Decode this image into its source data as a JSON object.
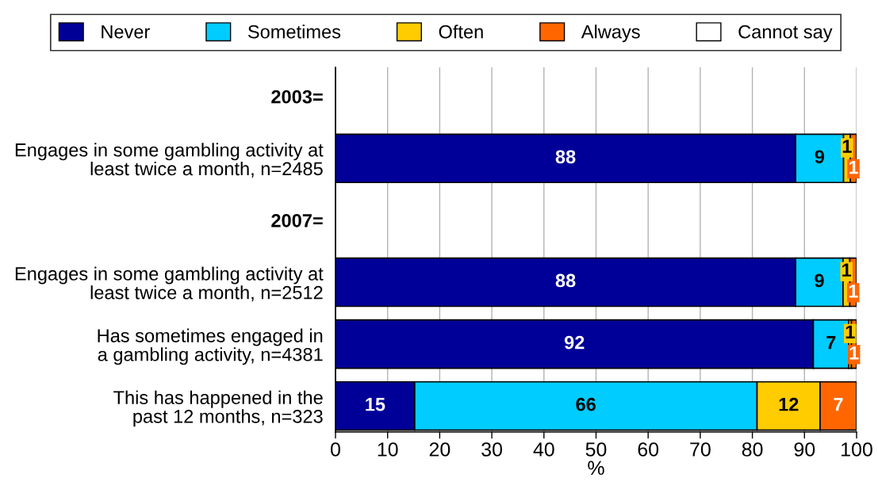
{
  "chart_data": {
    "type": "bar",
    "orientation": "horizontal",
    "stacked": true,
    "categories": [
      "2003=",
      "Engages in some gambling activity at\nleast twice a month, n=2485",
      "2007=",
      "Engages in some gambling activity at\nleast twice a month, n=2512",
      "Has sometimes engaged in\na gambling activity, n=4381",
      "This has happened in the\npast 12 months, n=323"
    ],
    "series": [
      {
        "name": "Never",
        "color": "#000099",
        "values": [
          null,
          88.3,
          null,
          88.3,
          91.7,
          15.2
        ],
        "value_labels": [
          null,
          "88",
          null,
          "88",
          "92",
          "15"
        ]
      },
      {
        "name": "Sometimes",
        "color": "#00ccff",
        "values": [
          null,
          9.2,
          null,
          9.1,
          6.8,
          65.7
        ],
        "value_labels": [
          null,
          "9",
          null,
          "9",
          "7",
          "66"
        ]
      },
      {
        "name": "Often",
        "color": "#ffcc00",
        "values": [
          null,
          1.3,
          null,
          1.3,
          0.5,
          12.1
        ],
        "value_labels": [
          null,
          "1",
          null,
          "1",
          "1",
          "12"
        ]
      },
      {
        "name": "Always",
        "color": "#ff6600",
        "values": [
          null,
          1.2,
          null,
          1.3,
          1.0,
          7.0
        ],
        "value_labels": [
          null,
          "1",
          null,
          "1",
          "1",
          "7"
        ]
      },
      {
        "name": "Cannot say",
        "color": "#ffffff",
        "values": [
          null,
          null,
          null,
          null,
          null,
          null
        ]
      }
    ],
    "xlim": [
      0,
      100
    ],
    "xticks": [
      0,
      10,
      20,
      30,
      40,
      50,
      60,
      70,
      80,
      90,
      100
    ],
    "xlabel": "%",
    "grid": "x",
    "legend": "top"
  }
}
